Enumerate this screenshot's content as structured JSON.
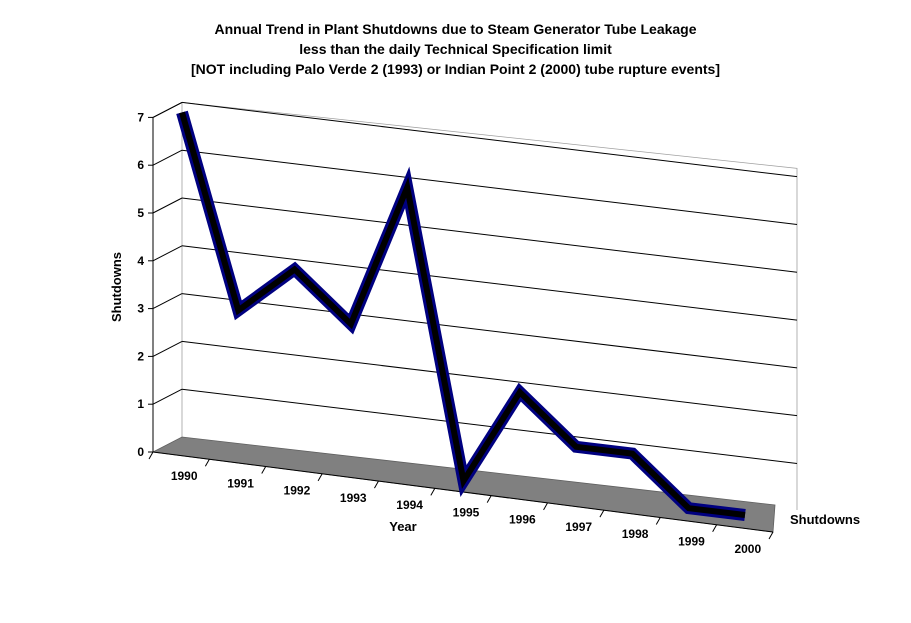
{
  "chart_data": {
    "type": "line",
    "title": [
      "Annual Trend in Plant Shutdowns due to Steam Generator Tube Leakage",
      "less than the daily Technical Specification limit",
      "[NOT including Palo Verde 2 (1993) or Indian Point 2 (2000) tube rupture events]"
    ],
    "xlabel": "Year",
    "ylabel": "Shutdowns",
    "series_axis_label": "Shutdowns",
    "categories": [
      "1990",
      "1991",
      "1992",
      "1993",
      "1994",
      "1995",
      "1996",
      "1997",
      "1998",
      "1999",
      "2000"
    ],
    "series": [
      {
        "name": "Shutdowns",
        "values": [
          7,
          3,
          4,
          3,
          6,
          0,
          2,
          1,
          1,
          0,
          0
        ]
      }
    ],
    "yticks": [
      "0",
      "1",
      "2",
      "3",
      "4",
      "5",
      "6",
      "7"
    ],
    "ylim": [
      0,
      7
    ],
    "grid": true,
    "legend": "none",
    "colors": {
      "line_core": "#000000",
      "line_edge": "#000080",
      "floor": "#808080",
      "gridline": "#000000"
    }
  }
}
